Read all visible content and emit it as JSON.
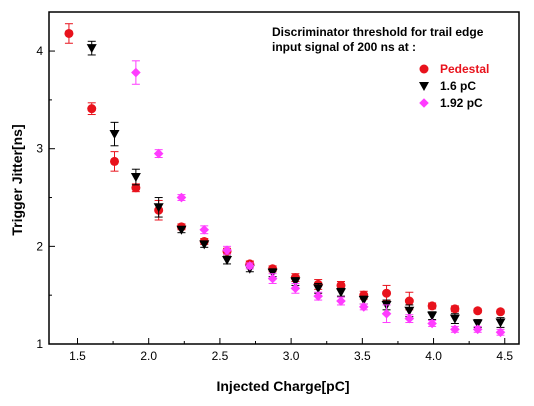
{
  "chart_data": {
    "type": "scatter",
    "title": "",
    "annotation_lines": [
      "Discriminator threshold for trail edge",
      "input signal of 200 ns at :"
    ],
    "xlabel": "Injected Charge[pC]",
    "ylabel": "Trigger Jitter[ns]",
    "xlim": [
      1.3,
      4.6
    ],
    "ylim": [
      1.0,
      4.4
    ],
    "x_ticks": [
      1.5,
      2.0,
      2.5,
      3.0,
      3.5,
      4.0,
      4.5
    ],
    "x_tick_labels": [
      "1.5",
      "2.0",
      "2.5",
      "3.0",
      "3.5",
      "4.0",
      "4.5"
    ],
    "y_ticks": [
      1,
      2,
      3,
      4
    ],
    "y_tick_labels": [
      "1",
      "2",
      "3",
      "4"
    ],
    "grid": false,
    "legend_placement": "top-right",
    "series": [
      {
        "name": "Pedestal",
        "marker": "circle",
        "color": "#e8121c",
        "label_color": "#e8121c",
        "points": [
          {
            "x": 1.44,
            "y": 4.18,
            "err": 0.1
          },
          {
            "x": 1.6,
            "y": 3.41,
            "err": 0.06
          },
          {
            "x": 1.76,
            "y": 2.87,
            "err": 0.1
          },
          {
            "x": 1.91,
            "y": 2.6,
            "err": 0.04
          },
          {
            "x": 2.07,
            "y": 2.37,
            "err": 0.1
          },
          {
            "x": 2.23,
            "y": 2.2,
            "err": 0.03
          },
          {
            "x": 2.39,
            "y": 2.05,
            "err": 0.03
          },
          {
            "x": 2.55,
            "y": 1.95,
            "err": 0.03
          },
          {
            "x": 2.71,
            "y": 1.82,
            "err": 0.03
          },
          {
            "x": 2.87,
            "y": 1.77,
            "err": 0.03
          },
          {
            "x": 3.03,
            "y": 1.68,
            "err": 0.04
          },
          {
            "x": 3.19,
            "y": 1.61,
            "err": 0.05
          },
          {
            "x": 3.35,
            "y": 1.6,
            "err": 0.04
          },
          {
            "x": 3.51,
            "y": 1.5,
            "err": 0.04
          },
          {
            "x": 3.67,
            "y": 1.52,
            "err": 0.08
          },
          {
            "x": 3.83,
            "y": 1.44,
            "err": 0.09
          },
          {
            "x": 3.99,
            "y": 1.39,
            "err": 0.03
          },
          {
            "x": 4.15,
            "y": 1.36,
            "err": 0.03
          },
          {
            "x": 4.31,
            "y": 1.34,
            "err": 0.02
          },
          {
            "x": 4.47,
            "y": 1.33,
            "err": 0.02
          }
        ]
      },
      {
        "name": "1.6 pC",
        "marker": "triangle-down",
        "color": "#000000",
        "label_color": "#000000",
        "points": [
          {
            "x": 1.6,
            "y": 4.03,
            "err": 0.07
          },
          {
            "x": 1.76,
            "y": 3.15,
            "err": 0.12
          },
          {
            "x": 1.91,
            "y": 2.71,
            "err": 0.08
          },
          {
            "x": 2.07,
            "y": 2.4,
            "err": 0.1
          },
          {
            "x": 2.23,
            "y": 2.17,
            "err": 0.03
          },
          {
            "x": 2.39,
            "y": 2.02,
            "err": 0.03
          },
          {
            "x": 2.55,
            "y": 1.86,
            "err": 0.04
          },
          {
            "x": 2.71,
            "y": 1.77,
            "err": 0.03
          },
          {
            "x": 2.87,
            "y": 1.73,
            "err": 0.04
          },
          {
            "x": 3.03,
            "y": 1.64,
            "err": 0.04
          },
          {
            "x": 3.19,
            "y": 1.57,
            "err": 0.05
          },
          {
            "x": 3.35,
            "y": 1.53,
            "err": 0.04
          },
          {
            "x": 3.51,
            "y": 1.45,
            "err": 0.04
          },
          {
            "x": 3.67,
            "y": 1.4,
            "err": 0.05
          },
          {
            "x": 3.83,
            "y": 1.34,
            "err": 0.06
          },
          {
            "x": 3.99,
            "y": 1.29,
            "err": 0.04
          },
          {
            "x": 4.15,
            "y": 1.26,
            "err": 0.05
          },
          {
            "x": 4.31,
            "y": 1.21,
            "err": 0.04
          },
          {
            "x": 4.47,
            "y": 1.22,
            "err": 0.05
          }
        ]
      },
      {
        "name": "1.92 pC",
        "marker": "diamond",
        "color": "#ff3cff",
        "label_color": "#000000",
        "points": [
          {
            "x": 1.91,
            "y": 3.78,
            "err": 0.12
          },
          {
            "x": 2.07,
            "y": 2.95,
            "err": 0.04
          },
          {
            "x": 2.23,
            "y": 2.5,
            "err": 0.03
          },
          {
            "x": 2.39,
            "y": 2.17,
            "err": 0.04
          },
          {
            "x": 2.55,
            "y": 1.96,
            "err": 0.04
          },
          {
            "x": 2.71,
            "y": 1.8,
            "err": 0.03
          },
          {
            "x": 2.87,
            "y": 1.67,
            "err": 0.05
          },
          {
            "x": 3.03,
            "y": 1.57,
            "err": 0.05
          },
          {
            "x": 3.19,
            "y": 1.49,
            "err": 0.04
          },
          {
            "x": 3.35,
            "y": 1.44,
            "err": 0.04
          },
          {
            "x": 3.51,
            "y": 1.38,
            "err": 0.03
          },
          {
            "x": 3.67,
            "y": 1.31,
            "err": 0.09
          },
          {
            "x": 3.83,
            "y": 1.26,
            "err": 0.04
          },
          {
            "x": 3.99,
            "y": 1.21,
            "err": 0.03
          },
          {
            "x": 4.15,
            "y": 1.15,
            "err": 0.03
          },
          {
            "x": 4.31,
            "y": 1.15,
            "err": 0.03
          },
          {
            "x": 4.47,
            "y": 1.12,
            "err": 0.03
          }
        ]
      }
    ]
  }
}
